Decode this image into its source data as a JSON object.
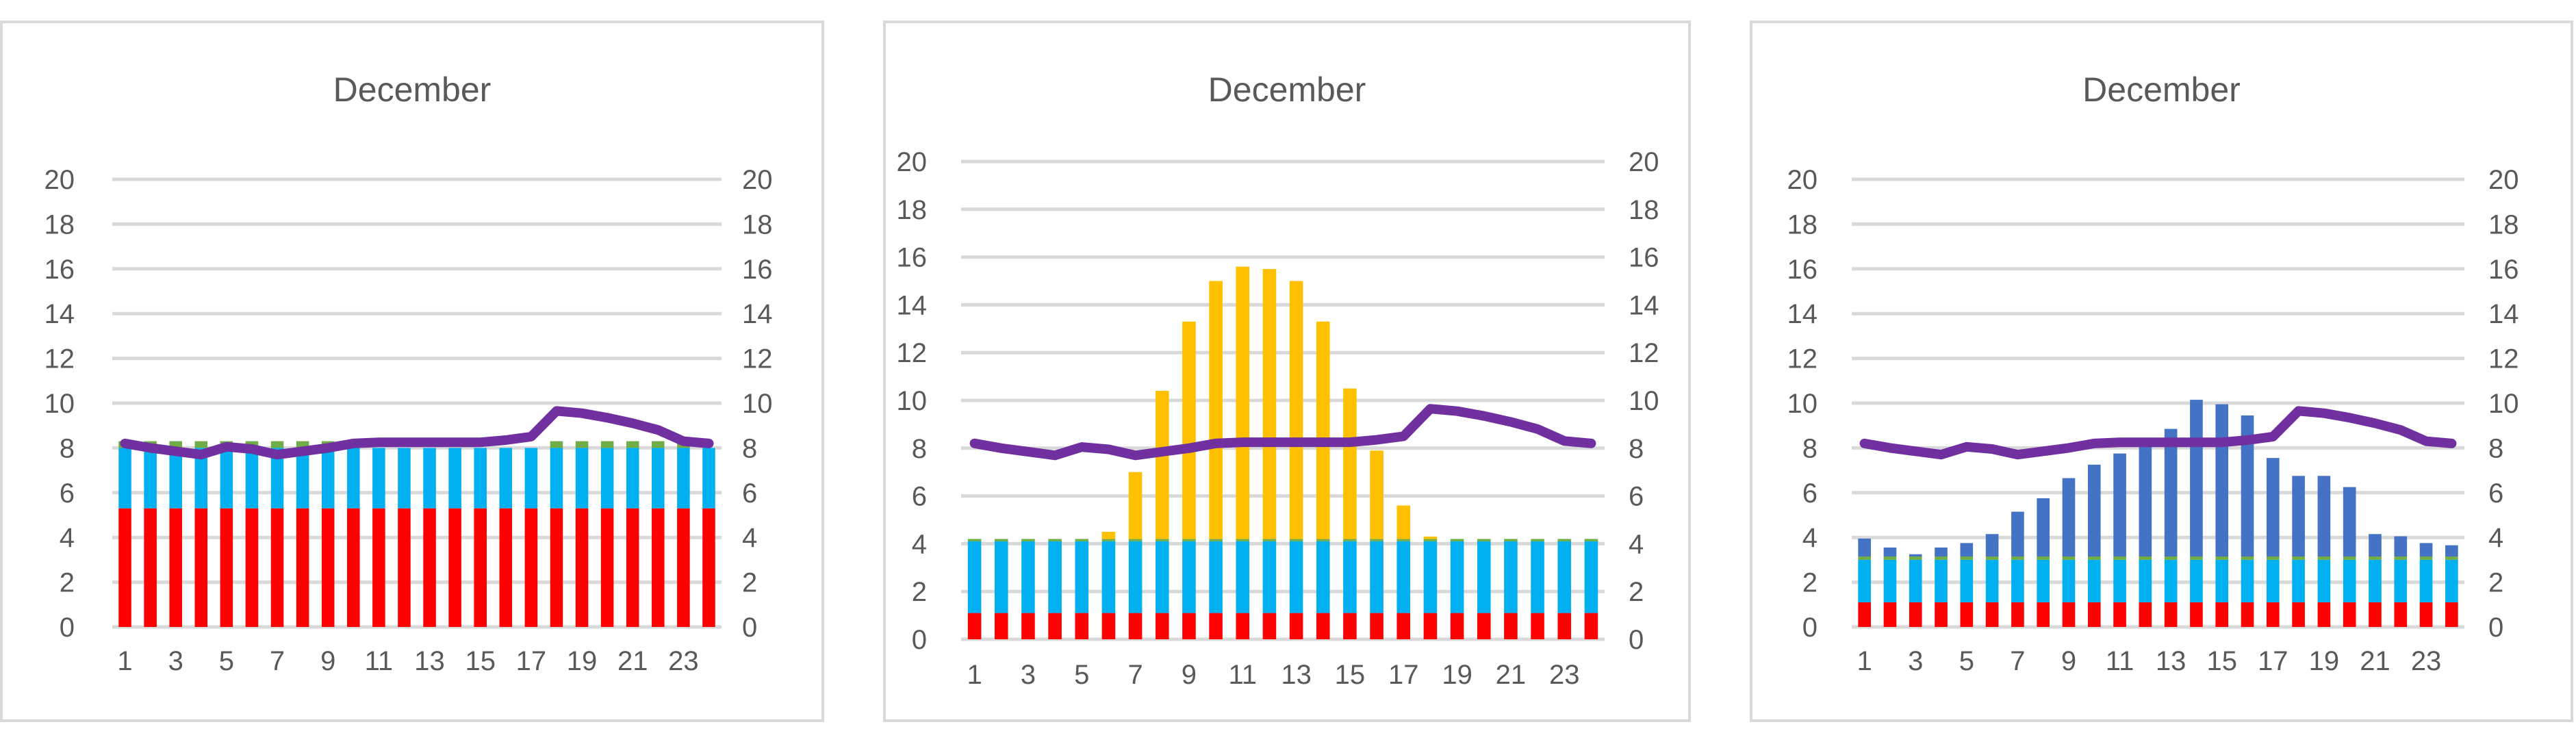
{
  "chart_data": [
    {
      "type": "bar",
      "subtype": "stacked-bar-with-line",
      "title": "December",
      "xlabel": "",
      "ylabel": "",
      "ylim": [
        0,
        20
      ],
      "y2lim": [
        0,
        20
      ],
      "ticks": [
        "0",
        "2",
        "4",
        "6",
        "8",
        "10",
        "12",
        "14",
        "16",
        "18",
        "20"
      ],
      "categories": [
        "1",
        "2",
        "3",
        "4",
        "5",
        "6",
        "7",
        "8",
        "9",
        "10",
        "11",
        "12",
        "13",
        "14",
        "15",
        "16",
        "17",
        "18",
        "19",
        "20",
        "21",
        "22",
        "23",
        "24"
      ],
      "xtick_labels": [
        "1",
        "3",
        "5",
        "7",
        "9",
        "11",
        "13",
        "15",
        "17",
        "19",
        "21",
        "23"
      ],
      "grid": true,
      "series": [
        {
          "name": "Red",
          "color": "#ff0000",
          "values": [
            5.3,
            5.3,
            5.3,
            5.3,
            5.3,
            5.3,
            5.3,
            5.3,
            5.3,
            5.3,
            5.3,
            5.3,
            5.3,
            5.3,
            5.3,
            5.3,
            5.3,
            5.3,
            5.3,
            5.3,
            5.3,
            5.3,
            5.3,
            5.3
          ]
        },
        {
          "name": "Cyan",
          "color": "#00b0f0",
          "values": [
            2.7,
            2.7,
            2.7,
            2.7,
            2.7,
            2.7,
            2.7,
            2.7,
            2.7,
            2.7,
            2.7,
            2.7,
            2.7,
            2.7,
            2.7,
            2.7,
            2.7,
            2.7,
            2.7,
            2.7,
            2.7,
            2.7,
            2.7,
            2.7
          ]
        },
        {
          "name": "Green",
          "color": "#70ad47",
          "values": [
            0.3,
            0.3,
            0.3,
            0.3,
            0.3,
            0.3,
            0.3,
            0.3,
            0.3,
            0,
            0,
            0,
            0,
            0,
            0,
            0,
            0,
            0.3,
            0.3,
            0.3,
            0.3,
            0.3,
            0.3,
            0
          ]
        }
      ],
      "line": {
        "name": "Purple",
        "color": "#7030a0",
        "values": [
          8.2,
          8.0,
          7.85,
          7.7,
          8.05,
          7.95,
          7.7,
          7.85,
          8.0,
          8.2,
          8.25,
          8.25,
          8.25,
          8.25,
          8.25,
          8.35,
          8.5,
          9.65,
          9.55,
          9.35,
          9.1,
          8.8,
          8.3,
          8.2
        ]
      }
    },
    {
      "type": "bar",
      "subtype": "stacked-bar-with-line",
      "title": "December",
      "xlabel": "",
      "ylabel": "",
      "ylim": [
        0,
        20
      ],
      "y2lim": [
        0,
        20
      ],
      "ticks": [
        "0",
        "2",
        "4",
        "6",
        "8",
        "10",
        "12",
        "14",
        "16",
        "18",
        "20"
      ],
      "categories": [
        "1",
        "2",
        "3",
        "4",
        "5",
        "6",
        "7",
        "8",
        "9",
        "10",
        "11",
        "12",
        "13",
        "14",
        "15",
        "16",
        "17",
        "18",
        "19",
        "20",
        "21",
        "22",
        "23",
        "24"
      ],
      "xtick_labels": [
        "1",
        "3",
        "5",
        "7",
        "9",
        "11",
        "13",
        "15",
        "17",
        "19",
        "21",
        "23"
      ],
      "grid": true,
      "series": [
        {
          "name": "Red",
          "color": "#ff0000",
          "values": [
            1.1,
            1.1,
            1.1,
            1.1,
            1.1,
            1.1,
            1.1,
            1.1,
            1.1,
            1.1,
            1.1,
            1.1,
            1.1,
            1.1,
            1.1,
            1.1,
            1.1,
            1.1,
            1.1,
            1.1,
            1.1,
            1.1,
            1.1,
            1.1
          ]
        },
        {
          "name": "Cyan",
          "color": "#00b0f0",
          "values": [
            3.0,
            3.0,
            3.0,
            3.0,
            3.0,
            3.0,
            3.0,
            3.0,
            3.0,
            3.0,
            3.0,
            3.0,
            3.0,
            3.0,
            3.0,
            3.0,
            3.0,
            3.0,
            3.0,
            3.0,
            3.0,
            3.0,
            3.0,
            3.0
          ]
        },
        {
          "name": "Green",
          "color": "#70ad47",
          "values": [
            0.1,
            0.1,
            0.1,
            0.1,
            0.1,
            0.1,
            0.1,
            0.1,
            0.1,
            0.1,
            0.1,
            0.1,
            0.1,
            0.1,
            0.1,
            0.1,
            0.1,
            0.1,
            0.1,
            0.1,
            0.1,
            0.1,
            0.1,
            0.1
          ]
        },
        {
          "name": "Yellow",
          "color": "#ffc000",
          "values": [
            0,
            0,
            0,
            0,
            0,
            0.3,
            2.8,
            6.2,
            9.1,
            10.8,
            11.4,
            11.3,
            10.8,
            9.1,
            6.3,
            3.7,
            1.4,
            0.1,
            0,
            0,
            0,
            0,
            0,
            0
          ]
        }
      ],
      "line": {
        "name": "Purple",
        "color": "#7030a0",
        "values": [
          8.2,
          8.0,
          7.85,
          7.7,
          8.05,
          7.95,
          7.7,
          7.85,
          8.0,
          8.2,
          8.25,
          8.25,
          8.25,
          8.25,
          8.25,
          8.35,
          8.5,
          9.65,
          9.55,
          9.35,
          9.1,
          8.8,
          8.3,
          8.2
        ]
      }
    },
    {
      "type": "bar",
      "subtype": "stacked-bar-with-line",
      "title": "December",
      "xlabel": "",
      "ylabel": "",
      "ylim": [
        0,
        20
      ],
      "y2lim": [
        0,
        20
      ],
      "ticks": [
        "0",
        "2",
        "4",
        "6",
        "8",
        "10",
        "12",
        "14",
        "16",
        "18",
        "20"
      ],
      "categories": [
        "1",
        "2",
        "3",
        "4",
        "5",
        "6",
        "7",
        "8",
        "9",
        "10",
        "11",
        "12",
        "13",
        "14",
        "15",
        "16",
        "17",
        "18",
        "19",
        "20",
        "21",
        "22",
        "23",
        "24"
      ],
      "xtick_labels": [
        "1",
        "3",
        "5",
        "7",
        "9",
        "11",
        "13",
        "15",
        "17",
        "19",
        "21",
        "23"
      ],
      "grid": true,
      "series": [
        {
          "name": "Red",
          "color": "#ff0000",
          "values": [
            1.1,
            1.1,
            1.1,
            1.1,
            1.1,
            1.1,
            1.1,
            1.1,
            1.1,
            1.1,
            1.1,
            1.1,
            1.1,
            1.1,
            1.1,
            1.1,
            1.1,
            1.1,
            1.1,
            1.1,
            1.1,
            1.1,
            1.1,
            1.1
          ]
        },
        {
          "name": "Cyan",
          "color": "#00b0f0",
          "values": [
            1.9,
            1.9,
            1.9,
            1.9,
            1.9,
            1.9,
            1.9,
            1.9,
            1.9,
            1.9,
            1.9,
            1.9,
            1.9,
            1.9,
            1.9,
            1.9,
            1.9,
            1.9,
            1.9,
            1.9,
            1.9,
            1.9,
            1.9,
            1.9
          ]
        },
        {
          "name": "Green",
          "color": "#70ad47",
          "values": [
            0.15,
            0.15,
            0.15,
            0.15,
            0.15,
            0.15,
            0.15,
            0.15,
            0.15,
            0.15,
            0.15,
            0.15,
            0.15,
            0.15,
            0.15,
            0.15,
            0.15,
            0.15,
            0.15,
            0.15,
            0.15,
            0.15,
            0.15,
            0.15
          ]
        },
        {
          "name": "Blue",
          "color": "#4472c4",
          "values": [
            0.8,
            0.4,
            0.1,
            0.4,
            0.6,
            1.0,
            2.0,
            2.6,
            3.5,
            4.1,
            4.6,
            5.0,
            5.7,
            7.0,
            6.8,
            6.3,
            4.4,
            3.6,
            3.6,
            3.1,
            1.0,
            0.9,
            0.6,
            0.5
          ]
        }
      ],
      "line": {
        "name": "Purple",
        "color": "#7030a0",
        "values": [
          8.2,
          8.0,
          7.85,
          7.7,
          8.05,
          7.95,
          7.7,
          7.85,
          8.0,
          8.2,
          8.25,
          8.25,
          8.25,
          8.25,
          8.25,
          8.35,
          8.5,
          9.65,
          9.55,
          9.35,
          9.1,
          8.8,
          8.3,
          8.2
        ]
      }
    }
  ]
}
